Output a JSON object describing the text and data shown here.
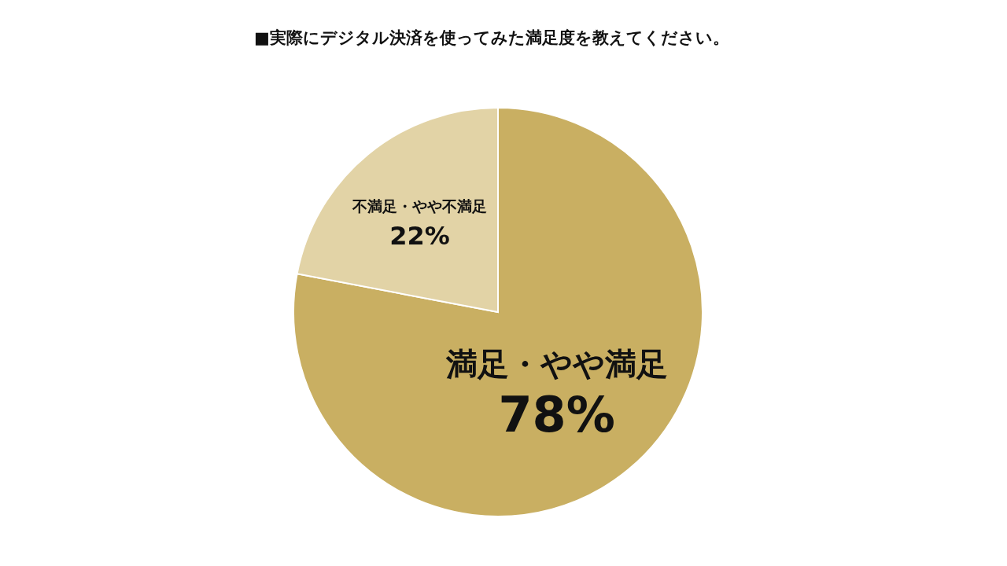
{
  "chart_data": {
    "type": "pie",
    "title": "■実際にデジタル決済を使ってみた満足度を教えてください。",
    "categories": [
      "満足・やや満足",
      "不満足・やや不満足"
    ],
    "values": [
      78,
      22
    ],
    "colors": [
      "#c9af62",
      "#e2d3a6"
    ],
    "value_labels": [
      "78%",
      "22%"
    ],
    "legend": false
  }
}
